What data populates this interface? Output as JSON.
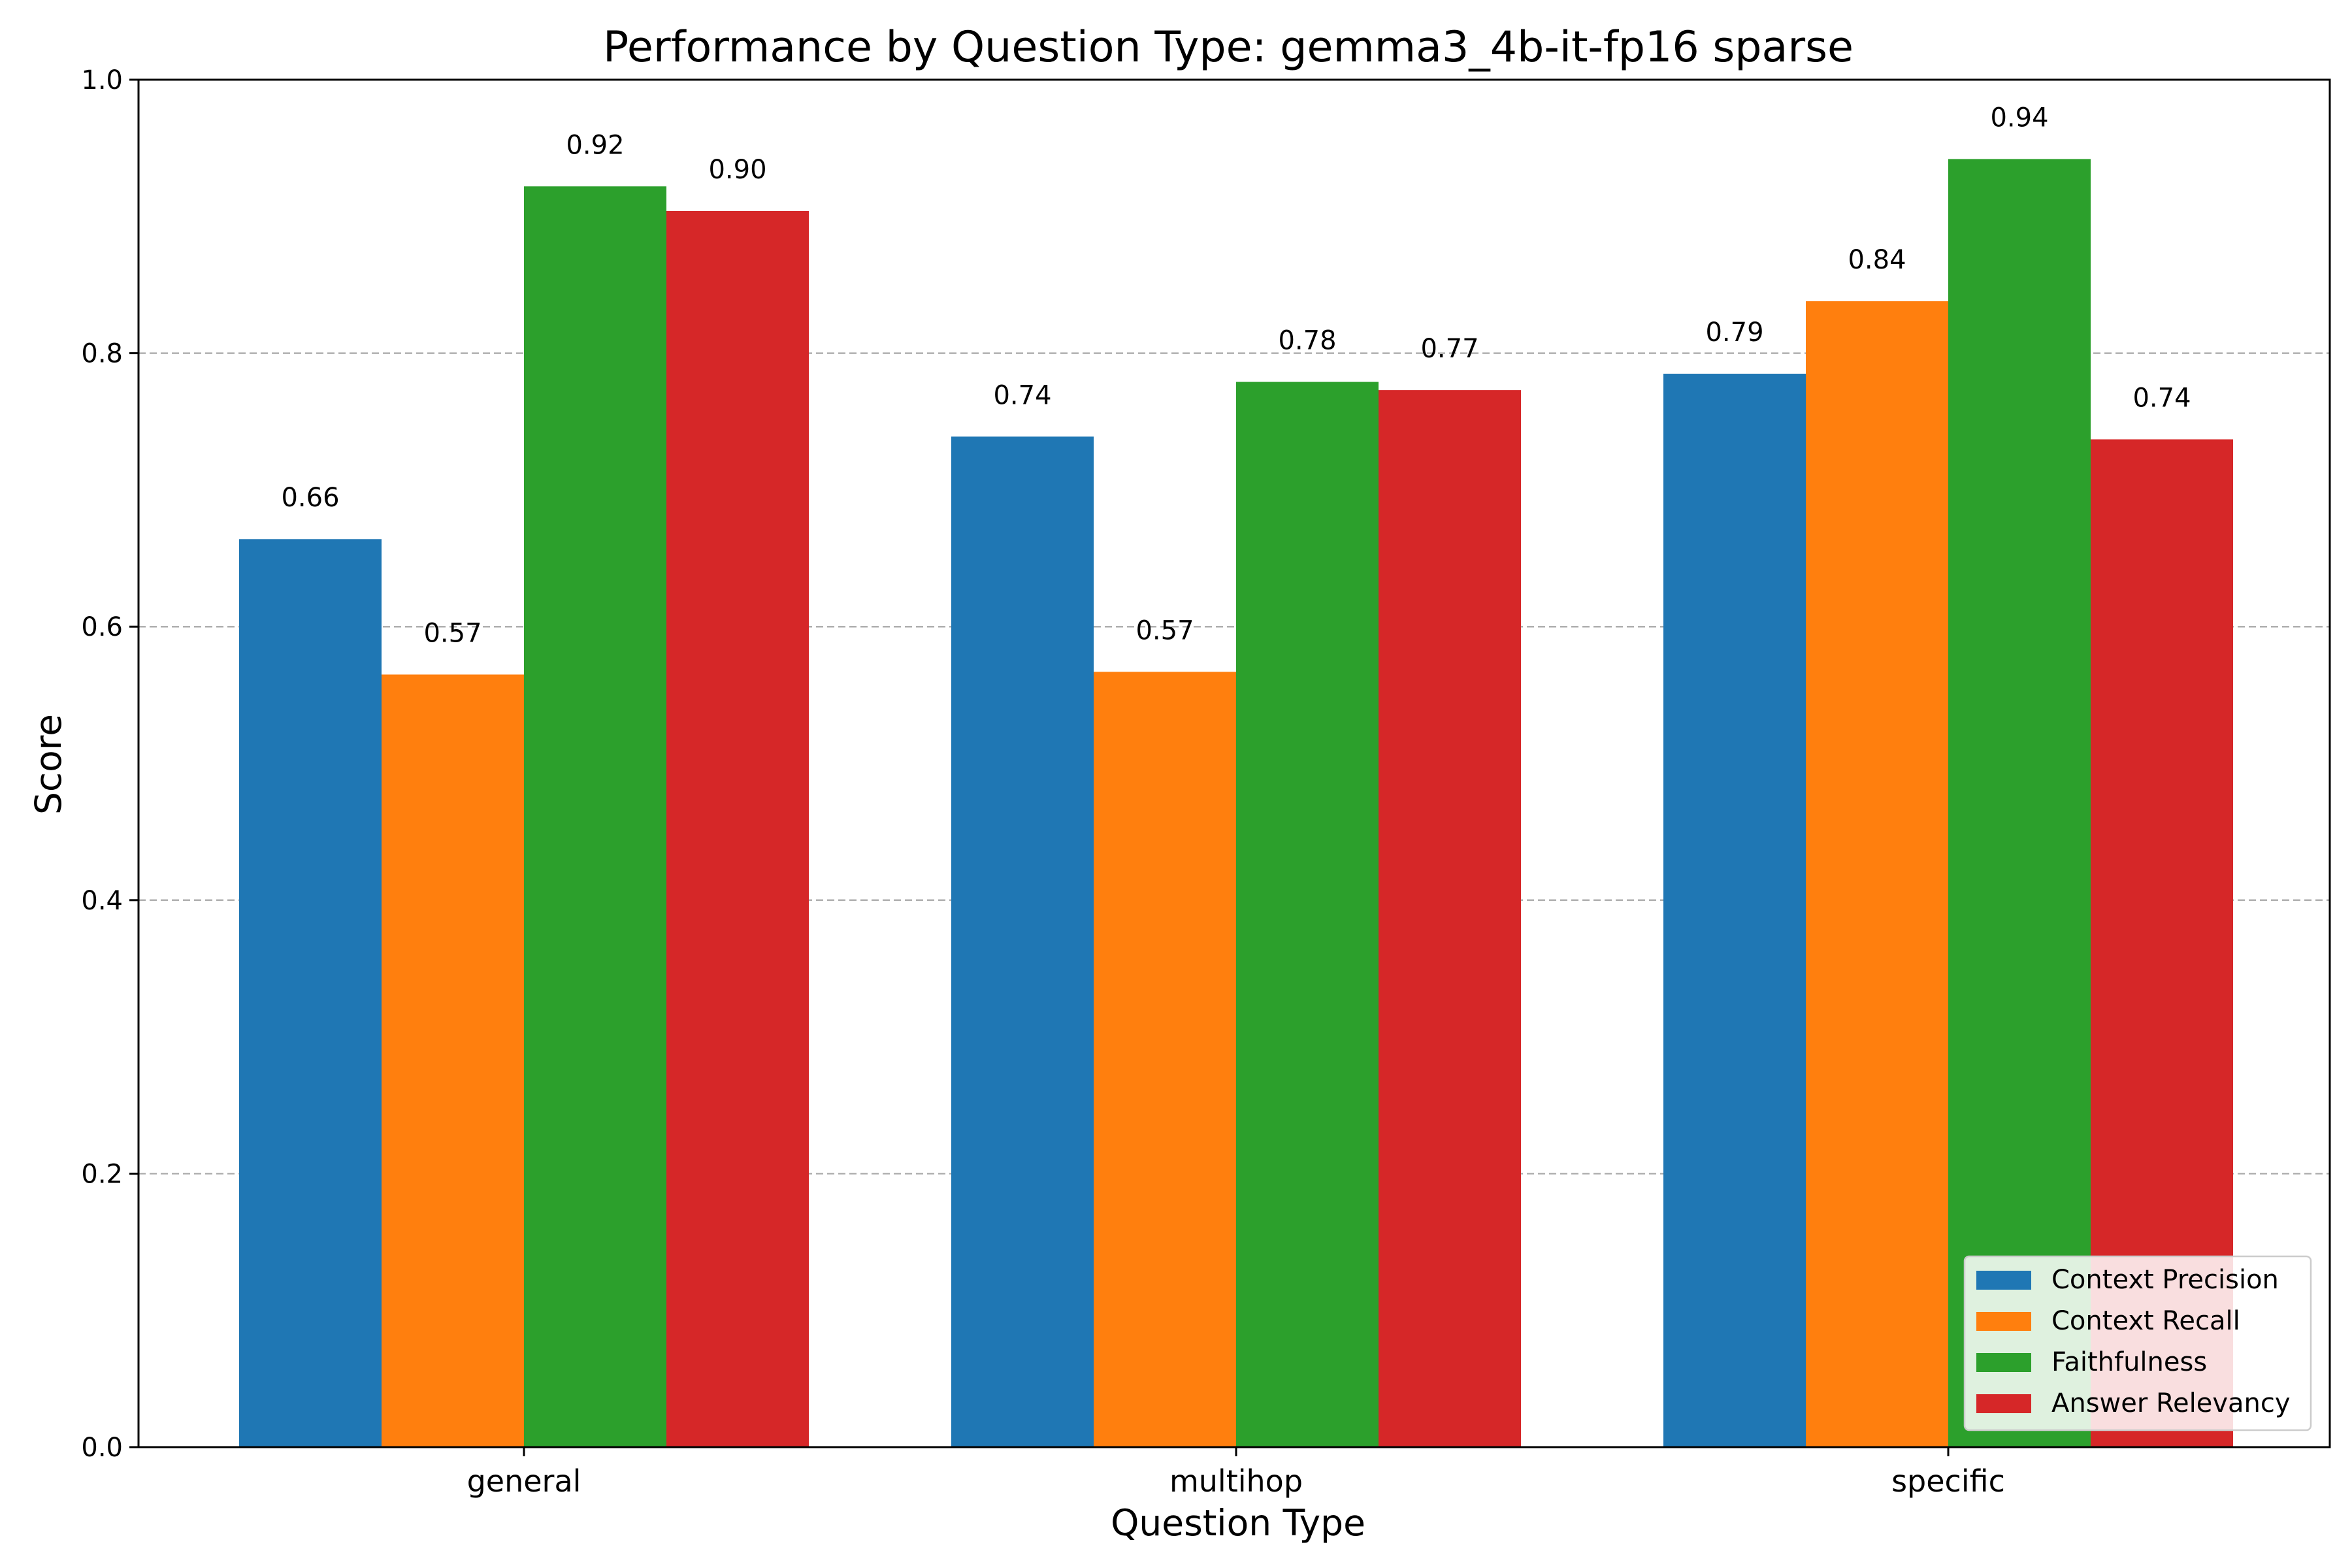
{
  "chart_data": {
    "type": "bar",
    "title": "Performance by Question Type: gemma3_4b-it-fp16 sparse",
    "xlabel": "Question Type",
    "ylabel": "Score",
    "ylim": [
      0,
      1.0
    ],
    "yticks": [
      "0.0",
      "0.2",
      "0.4",
      "0.6",
      "0.8",
      "1.0"
    ],
    "grid": "y-dashed",
    "legend_position": "bottom-right",
    "categories": [
      "general",
      "multihop",
      "specific"
    ],
    "series": [
      {
        "name": "Context Precision",
        "color": "#1f77b4",
        "values": [
          0.664,
          0.739,
          0.785
        ],
        "labels": [
          "0.66",
          "0.74",
          "0.79"
        ]
      },
      {
        "name": "Context Recall",
        "color": "#ff7f0e",
        "values": [
          0.565,
          0.567,
          0.838
        ],
        "labels": [
          "0.57",
          "0.57",
          "0.84"
        ]
      },
      {
        "name": "Faithfulness",
        "color": "#2ca02c",
        "values": [
          0.922,
          0.779,
          0.942
        ],
        "labels": [
          "0.92",
          "0.78",
          "0.94"
        ]
      },
      {
        "name": "Answer Relevancy",
        "color": "#d62728",
        "values": [
          0.904,
          0.773,
          0.737
        ],
        "labels": [
          "0.90",
          "0.77",
          "0.74"
        ]
      }
    ]
  }
}
